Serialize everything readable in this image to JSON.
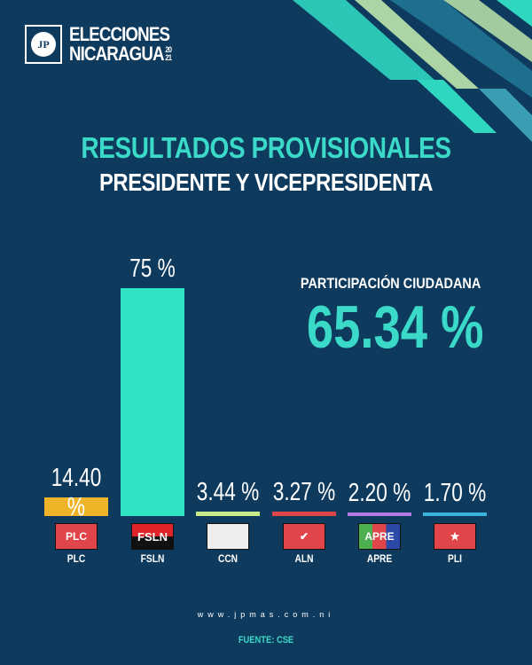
{
  "logo": {
    "mark": "JP",
    "line1": "ELECCIONES",
    "line2": "NICARAGUA",
    "year_top": "20",
    "year_bottom": "21"
  },
  "title": "RESULTADOS PROVISIONALES",
  "subtitle": "PRESIDENTE Y VICEPRESIDENTA",
  "participation": {
    "label": "PARTICIPACIÓN CIUDADANA",
    "value": "65.34 %"
  },
  "chart_data": {
    "type": "bar",
    "title": "RESULTADOS PROVISIONALES - PRESIDENTE Y VICEPRESIDENTA",
    "categories": [
      "PLC",
      "FSLN",
      "CCN",
      "ALN",
      "APRE",
      "PLI"
    ],
    "values": [
      14.4,
      75,
      3.44,
      3.27,
      2.2,
      1.7
    ],
    "labels": [
      "14.40 %",
      "75 %",
      "3.44 %",
      "3.27 %",
      "2.20 %",
      "1.70 %"
    ],
    "colors": [
      "#f0b429",
      "#2fe3c3",
      "#c9eb8c",
      "#e0454a",
      "#b578e6",
      "#3bb3dc"
    ],
    "ylabel": "%",
    "ylim": [
      0,
      75
    ]
  },
  "footer": {
    "website": "www.jpmas.com.ni",
    "source": "FUENTE: CSE"
  }
}
